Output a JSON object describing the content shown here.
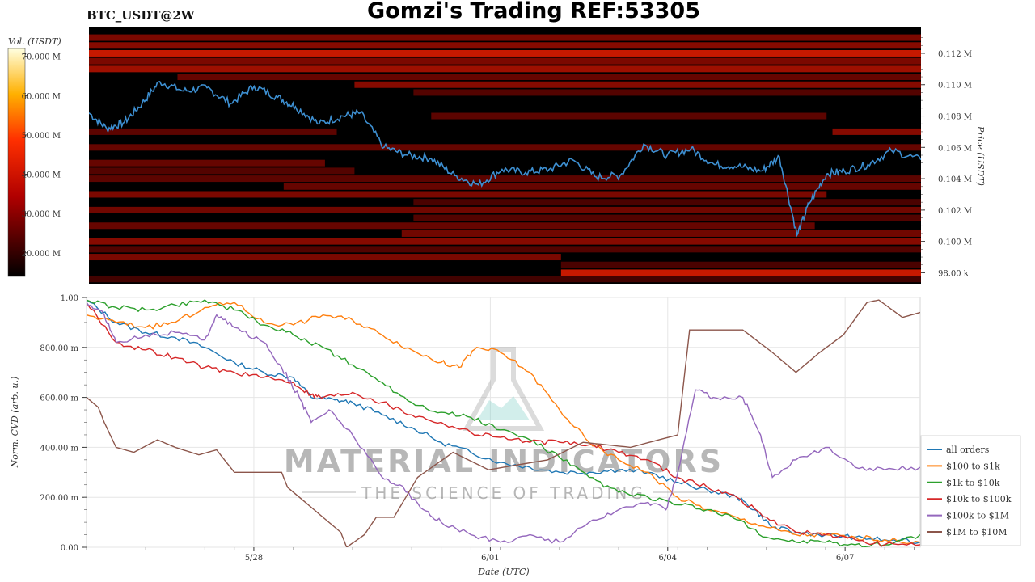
{
  "header": {
    "pair_label": "BTC_USDT@2W",
    "title": "Gomzi's Trading REF:53305"
  },
  "watermark": {
    "brand": "MATERIAL INDICATORS",
    "tagline": "THE SCIENCE OF TRADING"
  },
  "colors": {
    "price_line": "#3d8fd1",
    "heatmap_bg": "#000000",
    "heatmap_hot": "#ff1a1a",
    "grid": "#e6e6e6"
  },
  "chart_data": [
    {
      "type": "heatmap",
      "subtype": "order-book liquidity heatmap with price line",
      "colorbar": {
        "label": "Vol. (USDT)",
        "ticks": [
          "70.000 M",
          "60.000 M",
          "50.000 M",
          "40.000 M",
          "30.000 M",
          "20.000 M"
        ],
        "range": [
          14,
          72
        ],
        "colormap": "black-red-yellow-white"
      },
      "y_axis": {
        "label": "Price (USDT)",
        "position": "right",
        "ticks": [
          "0.112 M",
          "0.110 M",
          "0.108 M",
          "0.106 M",
          "0.104 M",
          "0.102 M",
          "0.100 M",
          "98.00 k"
        ],
        "tick_values": [
          112000,
          110000,
          108000,
          106000,
          104000,
          102000,
          100000,
          98000
        ],
        "range": [
          97300,
          113700
        ]
      },
      "x_range_days": [
        0,
        14.1
      ],
      "price_series": {
        "name": "price",
        "x_days": [
          0,
          0.3,
          0.6,
          0.9,
          1.2,
          1.6,
          2.0,
          2.4,
          2.8,
          3.2,
          3.5,
          3.9,
          4.3,
          4.6,
          5.0,
          5.4,
          5.8,
          6.2,
          6.6,
          7.0,
          7.4,
          7.8,
          8.2,
          8.6,
          9.0,
          9.4,
          9.8,
          10.2,
          10.6,
          11.0,
          11.4,
          11.7,
          12.0,
          12.2,
          12.5,
          12.8,
          13.2,
          13.6,
          14.1
        ],
        "values": [
          108200,
          107200,
          107600,
          108800,
          110200,
          109600,
          109800,
          108800,
          109900,
          109200,
          108600,
          107500,
          108000,
          108200,
          106000,
          105500,
          105300,
          104200,
          103600,
          104600,
          104400,
          104600,
          105200,
          104100,
          104200,
          106200,
          105500,
          105900,
          104900,
          104800,
          104500,
          105400,
          100400,
          102400,
          104300,
          104500,
          104900,
          105800,
          105200
        ]
      },
      "liquidity_bands": [
        {
          "price": 113000,
          "start": 0,
          "end": 14.1,
          "intensity": 0.55
        },
        {
          "price": 112500,
          "start": 0,
          "end": 14.1,
          "intensity": 0.6
        },
        {
          "price": 112000,
          "start": 0,
          "end": 14.1,
          "intensity": 0.85
        },
        {
          "price": 111500,
          "start": 0,
          "end": 14.1,
          "intensity": 0.55
        },
        {
          "price": 111000,
          "start": 0,
          "end": 14.1,
          "intensity": 0.7
        },
        {
          "price": 110500,
          "start": 1.5,
          "end": 14.1,
          "intensity": 0.45
        },
        {
          "price": 110000,
          "start": 4.5,
          "end": 14.1,
          "intensity": 0.6
        },
        {
          "price": 109500,
          "start": 5.5,
          "end": 14.1,
          "intensity": 0.35
        },
        {
          "price": 108000,
          "start": 5.8,
          "end": 12.5,
          "intensity": 0.4
        },
        {
          "price": 107000,
          "start": 0,
          "end": 4.2,
          "intensity": 0.4
        },
        {
          "price": 107000,
          "start": 12.6,
          "end": 14.1,
          "intensity": 0.6
        },
        {
          "price": 106000,
          "start": 0,
          "end": 14.1,
          "intensity": 0.45
        },
        {
          "price": 105000,
          "start": 0,
          "end": 4.0,
          "intensity": 0.45
        },
        {
          "price": 104500,
          "start": 0,
          "end": 4.5,
          "intensity": 0.35
        },
        {
          "price": 104000,
          "start": 0,
          "end": 14.1,
          "intensity": 0.4
        },
        {
          "price": 103500,
          "start": 3.3,
          "end": 14.1,
          "intensity": 0.45
        },
        {
          "price": 103000,
          "start": 0,
          "end": 12.5,
          "intensity": 0.55
        },
        {
          "price": 102500,
          "start": 5.5,
          "end": 14.1,
          "intensity": 0.3
        },
        {
          "price": 102000,
          "start": 0,
          "end": 14.1,
          "intensity": 0.5
        },
        {
          "price": 101500,
          "start": 5.5,
          "end": 14.1,
          "intensity": 0.35
        },
        {
          "price": 101000,
          "start": 0,
          "end": 12.3,
          "intensity": 0.45
        },
        {
          "price": 100500,
          "start": 5.3,
          "end": 14.1,
          "intensity": 0.5
        },
        {
          "price": 100000,
          "start": 0,
          "end": 14.1,
          "intensity": 0.6
        },
        {
          "price": 99500,
          "start": 0,
          "end": 14.1,
          "intensity": 0.35
        },
        {
          "price": 99000,
          "start": 0,
          "end": 8.0,
          "intensity": 0.55
        },
        {
          "price": 98500,
          "start": 8.0,
          "end": 14.1,
          "intensity": 0.3
        },
        {
          "price": 98000,
          "start": 8.0,
          "end": 14.1,
          "intensity": 0.85
        },
        {
          "price": 97600,
          "start": 0,
          "end": 14.1,
          "intensity": 0.25
        }
      ]
    },
    {
      "type": "line",
      "xlabel": "Date (UTC)",
      "ylabel": "Norm. CVD (arb. u.)",
      "x_ticks": [
        "5/28",
        "6/01",
        "6/04",
        "6/07"
      ],
      "x_tick_values": [
        2.83,
        6.83,
        9.83,
        12.83
      ],
      "x_range": [
        0,
        14.1
      ],
      "y_ticks": [
        "1.00",
        "800.00 m",
        "600.00 m",
        "400.00 m",
        "200.00 m",
        "0.00"
      ],
      "y_tick_values": [
        1.0,
        0.8,
        0.6,
        0.4,
        0.2,
        0.0
      ],
      "ylim": [
        0,
        1
      ],
      "grid": true,
      "legend": "right",
      "series": [
        {
          "name": "all orders",
          "color": "#1f77b4",
          "x": [
            0,
            0.5,
            1,
            1.5,
            2,
            2.5,
            3,
            3.5,
            3.8,
            4.2,
            4.5,
            5,
            5.5,
            6,
            6.5,
            7,
            7.5,
            8,
            8.5,
            9,
            9.5,
            10,
            10.5,
            11,
            11.3,
            11.6,
            12,
            12.5,
            13,
            13.5,
            14.1
          ],
          "values": [
            0.99,
            0.9,
            0.86,
            0.84,
            0.8,
            0.74,
            0.7,
            0.68,
            0.6,
            0.59,
            0.58,
            0.53,
            0.48,
            0.42,
            0.38,
            0.34,
            0.32,
            0.3,
            0.3,
            0.31,
            0.3,
            0.26,
            0.23,
            0.2,
            0.15,
            0.08,
            0.06,
            0.05,
            0.04,
            0.03,
            0.02
          ]
        },
        {
          "name": "$100 to $1k",
          "color": "#ff7f0e",
          "x": [
            0,
            0.5,
            1,
            1.5,
            2,
            2.5,
            3,
            3.5,
            4,
            4.5,
            5,
            5.5,
            6,
            6.3,
            6.6,
            7,
            7.5,
            8,
            8.5,
            9,
            9.5,
            10,
            10.5,
            11,
            11.5,
            12,
            12.5,
            13,
            13.5,
            14.1
          ],
          "values": [
            0.93,
            0.9,
            0.88,
            0.9,
            0.96,
            0.98,
            0.9,
            0.89,
            0.93,
            0.91,
            0.85,
            0.79,
            0.74,
            0.72,
            0.8,
            0.78,
            0.7,
            0.55,
            0.42,
            0.35,
            0.3,
            0.2,
            0.15,
            0.12,
            0.08,
            0.05,
            0.05,
            0.04,
            0.03,
            0.02
          ]
        },
        {
          "name": "$1k to $10k",
          "color": "#2ca02c",
          "x": [
            0,
            0.5,
            1,
            1.5,
            2,
            2.5,
            3,
            3.5,
            4,
            4.5,
            5,
            5.5,
            6,
            6.5,
            7,
            7.5,
            8,
            8.5,
            9,
            9.5,
            10,
            10.5,
            11,
            11.5,
            12,
            12.5,
            13,
            13.5,
            14.1
          ],
          "values": [
            0.99,
            0.96,
            0.95,
            0.97,
            0.99,
            0.95,
            0.89,
            0.85,
            0.8,
            0.73,
            0.66,
            0.58,
            0.54,
            0.52,
            0.47,
            0.43,
            0.36,
            0.28,
            0.22,
            0.2,
            0.17,
            0.15,
            0.11,
            0.04,
            0.02,
            0.02,
            0.01,
            0.01,
            0.05
          ]
        },
        {
          "name": "$10k to $100k",
          "color": "#d62728",
          "x": [
            0,
            0.5,
            1,
            1.5,
            2,
            2.5,
            3,
            3.5,
            3.8,
            4,
            4.5,
            5,
            5.5,
            6,
            6.5,
            7,
            7.5,
            8,
            8.5,
            9,
            9.5,
            10,
            10.5,
            11,
            11.5,
            12,
            12.5,
            13,
            13.5,
            14.1
          ],
          "values": [
            0.98,
            0.82,
            0.79,
            0.76,
            0.72,
            0.7,
            0.68,
            0.66,
            0.61,
            0.6,
            0.62,
            0.58,
            0.53,
            0.5,
            0.46,
            0.44,
            0.42,
            0.42,
            0.41,
            0.38,
            0.35,
            0.28,
            0.24,
            0.2,
            0.12,
            0.06,
            0.05,
            0.03,
            0.01,
            0.01
          ]
        },
        {
          "name": "$100k to $1M",
          "color": "#9467bd",
          "x": [
            0,
            0.3,
            0.5,
            1,
            1.5,
            2,
            2.2,
            2.5,
            3,
            3.3,
            3.6,
            3.8,
            4.1,
            4.5,
            5,
            5.3,
            5.7,
            6,
            6.5,
            7,
            7.5,
            8,
            8.5,
            9,
            9.5,
            9.8,
            10,
            10.3,
            10.6,
            11.1,
            11.4,
            11.6,
            12,
            12.5,
            13,
            13.5,
            14.1
          ],
          "values": [
            0.98,
            0.93,
            0.82,
            0.85,
            0.86,
            0.83,
            0.93,
            0.88,
            0.82,
            0.72,
            0.6,
            0.5,
            0.55,
            0.45,
            0.28,
            0.25,
            0.15,
            0.1,
            0.05,
            0.02,
            0.05,
            0.02,
            0.1,
            0.15,
            0.18,
            0.15,
            0.3,
            0.63,
            0.6,
            0.6,
            0.45,
            0.28,
            0.35,
            0.4,
            0.32,
            0.31,
            0.32
          ]
        },
        {
          "name": "$1M to $10M",
          "color": "#8c564b",
          "x": [
            0,
            0.2,
            0.3,
            0.5,
            0.8,
            1.2,
            1.5,
            1.9,
            2.2,
            2.5,
            3.3,
            3.4,
            4.3,
            4.4,
            4.7,
            4.9,
            5.2,
            5.6,
            6.2,
            6.8,
            7.8,
            8.4,
            9.2,
            10,
            10.2,
            10.8,
            11.1,
            11.6,
            12,
            12.4,
            12.8,
            13.2,
            13.4,
            13.8,
            14.1
          ],
          "values": [
            0.6,
            0.56,
            0.5,
            0.4,
            0.38,
            0.43,
            0.4,
            0.37,
            0.39,
            0.3,
            0.3,
            0.24,
            0.06,
            0.0,
            0.05,
            0.12,
            0.12,
            0.28,
            0.38,
            0.31,
            0.35,
            0.42,
            0.4,
            0.45,
            0.87,
            0.87,
            0.87,
            0.78,
            0.7,
            0.78,
            0.85,
            0.98,
            0.99,
            0.92,
            0.94
          ]
        }
      ]
    }
  ]
}
